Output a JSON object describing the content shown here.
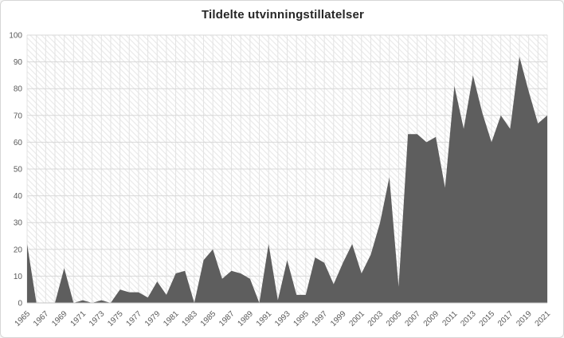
{
  "window": {
    "background": "#ffffff",
    "border_color": "#d6d6d6"
  },
  "chart_data": {
    "type": "area",
    "title": "Tildelte utvinningstillatelser",
    "x": [
      1965,
      1966,
      1967,
      1968,
      1969,
      1970,
      1971,
      1972,
      1973,
      1974,
      1975,
      1976,
      1977,
      1978,
      1979,
      1980,
      1981,
      1982,
      1983,
      1984,
      1985,
      1986,
      1987,
      1988,
      1989,
      1990,
      1991,
      1992,
      1993,
      1994,
      1995,
      1996,
      1997,
      1998,
      1999,
      2000,
      2001,
      2002,
      2003,
      2004,
      2005,
      2006,
      2007,
      2008,
      2009,
      2010,
      2011,
      2012,
      2013,
      2014,
      2015,
      2016,
      2017,
      2018,
      2019,
      2020,
      2021
    ],
    "values": [
      22,
      0,
      0,
      0,
      13,
      0,
      1,
      0,
      1,
      0,
      5,
      4,
      4,
      2,
      8,
      3,
      11,
      12,
      0,
      16,
      20,
      9,
      12,
      11,
      9,
      0,
      22,
      1,
      16,
      3,
      3,
      17,
      15,
      7,
      15,
      22,
      11,
      18,
      30,
      47,
      6,
      63,
      63,
      60,
      62,
      43,
      81,
      65,
      85,
      71,
      60,
      70,
      65,
      92,
      79,
      67,
      70
    ],
    "xlabel": "",
    "ylabel": "",
    "ylim": [
      0,
      100
    ],
    "ytick_step": 10,
    "ytick_labels": [
      "0",
      "10",
      "20",
      "30",
      "40",
      "50",
      "60",
      "70",
      "80",
      "90",
      "100"
    ],
    "xtick_labels": [
      "1965",
      "1967",
      "1969",
      "1971",
      "1973",
      "1975",
      "1977",
      "1979",
      "1981",
      "1983",
      "1985",
      "1987",
      "1989",
      "1991",
      "1993",
      "1995",
      "1997",
      "1999",
      "2001",
      "2003",
      "2005",
      "2007",
      "2009",
      "2011",
      "2013",
      "2015",
      "2017",
      "2019",
      "2021"
    ],
    "grid": "both",
    "legend": "none",
    "background_pattern": "diagonal-hatch",
    "colors": {
      "area_fill": "#5e5e5e",
      "hatch_line": "#e9e9e9",
      "grid_h": "#d8d8d8",
      "grid_v": "#e3e3e3",
      "axis_line": "#c4c4c4",
      "tick_text": "#595959",
      "title_text": "#262626"
    }
  }
}
